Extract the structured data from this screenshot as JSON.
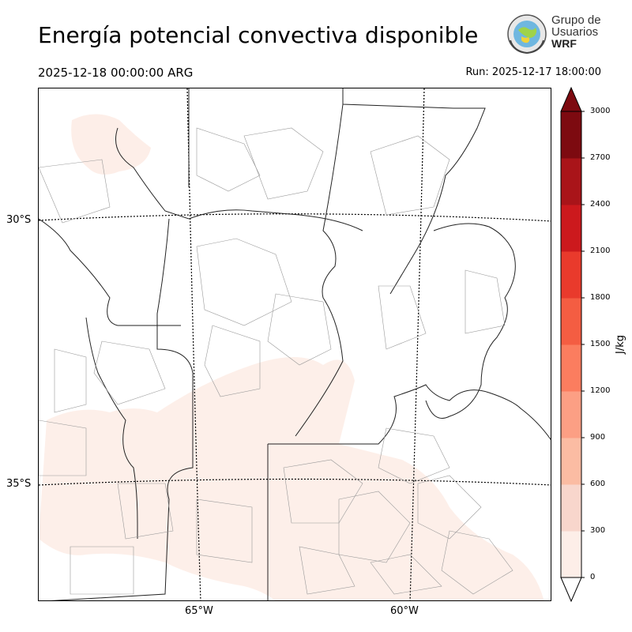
{
  "header": {
    "title": "Energía potencial convectiva disponible",
    "valid_time": "2025-12-18 00:00:00 ARG",
    "run_time": "Run: 2025-12-17 18:00:00"
  },
  "logo": {
    "line1": "Grupo de",
    "line2": "Usuarios",
    "line3": "WRF"
  },
  "map": {
    "variable": "CAPE",
    "lat_labels": [
      "30°S",
      "35°S"
    ],
    "lon_labels": [
      "65°W",
      "60°W"
    ]
  },
  "colorbar": {
    "units": "J/kg",
    "ticks": [
      "0",
      "300",
      "600",
      "900",
      "1200",
      "1500",
      "1800",
      "2100",
      "2400",
      "2700",
      "3000"
    ],
    "colors": [
      "#fdeee8",
      "#f8d6cc",
      "#fbbca3",
      "#fc9f84",
      "#fb7d5f",
      "#f45d42",
      "#e93a2c",
      "#cc191d",
      "#a91419",
      "#7d0a10"
    ],
    "extend": "both"
  }
}
